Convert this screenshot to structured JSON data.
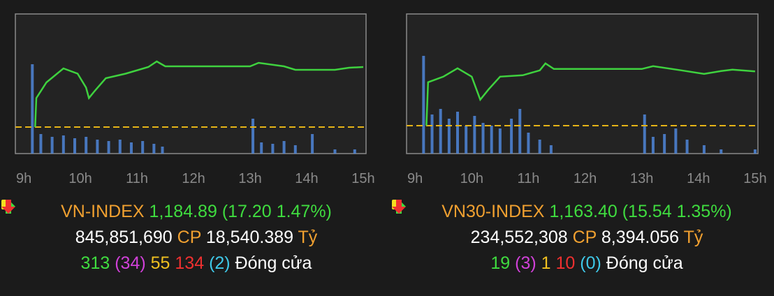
{
  "chart_data": [
    {
      "type": "line",
      "xlim": [
        8.85,
        15.05
      ],
      "ylim": [
        1160.1,
        1200.1
      ],
      "y2lim": [
        0,
        100
      ],
      "xticks": [
        {
          "value": 9,
          "label": "9h"
        },
        {
          "value": 10,
          "label": "10h"
        },
        {
          "value": 11,
          "label": "11h"
        },
        {
          "value": 12,
          "label": "12h"
        },
        {
          "value": 13,
          "label": "13h"
        },
        {
          "value": 14,
          "label": "14h"
        },
        {
          "value": 15,
          "label": "15h"
        }
      ],
      "reference": {
        "value": 1167.69,
        "color": "#e6b417"
      },
      "series": [
        {
          "type": "line",
          "color": "#3fd23f",
          "x": [
            9.2,
            9.22,
            9.4,
            9.7,
            9.95,
            10.1,
            10.15,
            10.25,
            10.45,
            10.8,
            11.2,
            11.35,
            11.5,
            13.0,
            13.15,
            13.6,
            13.8,
            14.5,
            14.75,
            15.0
          ],
          "values": [
            1167.7,
            1176,
            1180.5,
            1184.5,
            1183,
            1179,
            1176,
            1178,
            1181.7,
            1183,
            1184.9,
            1186.5,
            1185.1,
            1185.1,
            1186.1,
            1185.1,
            1184.1,
            1184.1,
            1184.7,
            1184.89
          ]
        },
        {
          "type": "bar",
          "axis": "y2",
          "color": "#4f86d9",
          "x": [
            9.15,
            9.3,
            9.5,
            9.7,
            9.9,
            10.1,
            10.3,
            10.5,
            10.7,
            10.9,
            11.1,
            11.3,
            11.45,
            13.05,
            13.2,
            13.4,
            13.6,
            13.8,
            14.1,
            14.5,
            14.85
          ],
          "values": [
            64,
            14,
            12,
            13,
            11,
            12,
            10,
            9,
            10,
            8,
            9,
            7,
            5,
            25,
            8,
            7,
            9,
            6,
            14,
            3,
            3
          ]
        }
      ]
    },
    {
      "type": "line",
      "xlim": [
        8.85,
        15.05
      ],
      "ylim": [
        1139.86,
        1179.86
      ],
      "y2lim": [
        0,
        100
      ],
      "xticks": [
        {
          "value": 9,
          "label": "9h"
        },
        {
          "value": 10,
          "label": "10h"
        },
        {
          "value": 11,
          "label": "11h"
        },
        {
          "value": 12,
          "label": "12h"
        },
        {
          "value": 13,
          "label": "13h"
        },
        {
          "value": 14,
          "label": "14h"
        },
        {
          "value": 15,
          "label": "15h"
        }
      ],
      "reference": {
        "value": 1147.86,
        "color": "#e6b417"
      },
      "series": [
        {
          "type": "line",
          "color": "#3fd23f",
          "x": [
            9.2,
            9.23,
            9.5,
            9.75,
            10.0,
            10.15,
            10.3,
            10.5,
            10.9,
            11.2,
            11.3,
            11.45,
            13.0,
            13.2,
            13.7,
            14.1,
            14.4,
            14.6,
            15.0
          ],
          "values": [
            1147.9,
            1160.3,
            1161.9,
            1164.3,
            1161.9,
            1155.3,
            1158.3,
            1161.9,
            1162.3,
            1163.7,
            1165.7,
            1164.1,
            1164.1,
            1164.9,
            1163.7,
            1162.7,
            1163.5,
            1163.9,
            1163.4
          ]
        },
        {
          "type": "bar",
          "axis": "y2",
          "color": "#4f86d9",
          "x": [
            9.15,
            9.3,
            9.45,
            9.6,
            9.75,
            9.9,
            10.05,
            10.2,
            10.35,
            10.5,
            10.7,
            10.85,
            11.0,
            11.2,
            11.4,
            13.05,
            13.2,
            13.4,
            13.6,
            13.8,
            14.1,
            14.4,
            15.0
          ],
          "values": [
            70,
            28,
            32,
            25,
            30,
            20,
            27,
            22,
            20,
            18,
            25,
            32,
            15,
            10,
            6,
            28,
            12,
            14,
            18,
            10,
            6,
            3,
            3
          ]
        }
      ]
    }
  ],
  "summary": [
    {
      "name": "VN-INDEX",
      "value": "1,184.89",
      "change": "(17.20 1.47%)",
      "volume": "845,851,690",
      "cp": "CP",
      "turnover": "18,540.389",
      "unit": "Tỷ",
      "up": "313",
      "ceiling": "(34)",
      "flat": "55",
      "down": "134",
      "floor": "(2)",
      "status": "Đóng cửa"
    },
    {
      "name": "VN30-INDEX",
      "value": "1,163.40",
      "change": "(15.54 1.35%)",
      "volume": "234,552,308",
      "cp": "CP",
      "turnover": "8,394.056",
      "unit": "Tỷ",
      "up": "19",
      "ceiling": "(3)",
      "flat": "1",
      "down": "10",
      "floor": "(0)",
      "status": "Đóng cửa"
    }
  ]
}
